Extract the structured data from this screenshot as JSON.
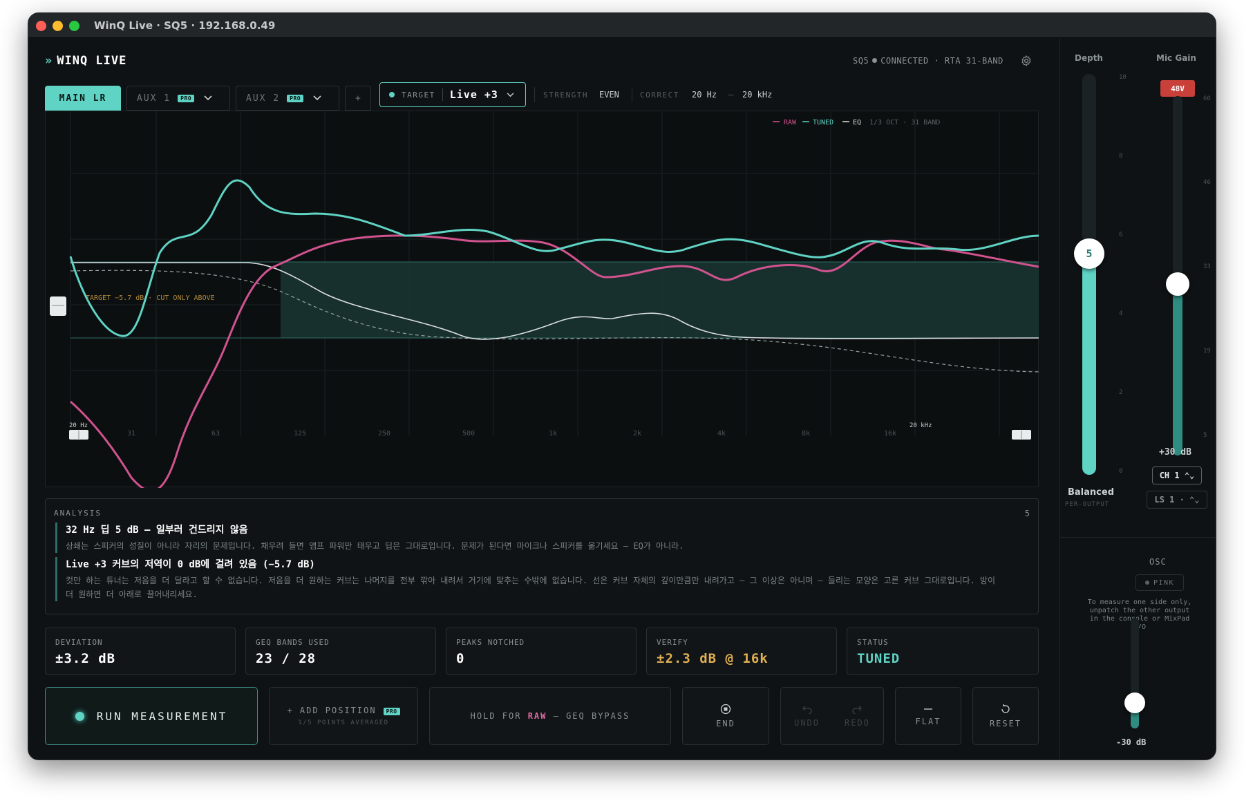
{
  "window": {
    "title": "WinQ Live · SQ5 · 192.168.0.49"
  },
  "brand": {
    "chevron": "»",
    "name": "WINQ LIVE"
  },
  "status": {
    "device": "SQ5",
    "connection": "CONNECTED",
    "rta": "RTA 31-BAND",
    "settings_icon": "gear-icon"
  },
  "tabs": [
    {
      "label": "MAIN LR",
      "active": true
    },
    {
      "label": "AUX 1",
      "badge": "PRO"
    },
    {
      "label": "AUX 2",
      "badge": "PRO"
    },
    {
      "label": "+"
    }
  ],
  "target": {
    "label": "TARGET",
    "value": "Live +3"
  },
  "options": {
    "strength_label": "STRENGTH",
    "strength_value": "EVEN",
    "correct_label": "CORRECT",
    "correct_from": "20 Hz",
    "correct_dash": "—",
    "correct_to": "20 kHz"
  },
  "chart": {
    "legend": {
      "raw": "RAW",
      "tuned": "TUNED",
      "eq": "EQ",
      "resolution": "1/3 OCT · 31 BAND"
    },
    "target_note": "TARGET −5.7 dB · CUT ONLY ABOVE",
    "low_bound_label": "20 Hz",
    "high_bound_label": "20 kHz",
    "x_ticks": [
      "31",
      "63",
      "125",
      "250",
      "500",
      "1k",
      "2k",
      "4k",
      "8k",
      "16k"
    ],
    "colors": {
      "raw": "#d0538f",
      "tuned": "#5fd3c4",
      "eq": "#d9dedf",
      "target_band": "#1d3a36"
    }
  },
  "analysis": {
    "title": "ANALYSIS",
    "count": "5",
    "items": [
      {
        "title": "32 Hz 딥 5 dB — 일부러 건드리지 않음",
        "body": "상쇄는 스피커의 성질이 아니라 자리의 문제입니다. 채우려 들면 앰프 파워만 태우고 딥은 그대로입니다. 문제가 된다면 마이크나 스피커를 옮기세요 — EQ가 아니라."
      },
      {
        "title": "Live +3 커브의 저역이 0 dB에 걸려 있음 (−5.7 dB)",
        "body": "컷만 하는 튜너는 저음을 더 달라고 할 수 없습니다. 저음을 더 원하는 커브는 나머지를 전부 깎아 내려서 거기에 맞추는 수밖에 없습니다. 선은 커브 자체의 깊이만큼만 내려가고 — 그 이상은 아니며 — 들리는 모양은 고른 커브 그대로입니다. 방이 더 원하면 더 아래로 끌어내리세요."
      }
    ]
  },
  "stats": [
    {
      "label": "DEVIATION",
      "value": "±3.2 dB",
      "tone": ""
    },
    {
      "label": "GEQ BANDS USED",
      "value": "23 / 28",
      "tone": ""
    },
    {
      "label": "PEAKS NOTCHED",
      "value": "0",
      "tone": ""
    },
    {
      "label": "VERIFY",
      "value": "±2.3 dB @ 16k",
      "tone": "amber"
    },
    {
      "label": "STATUS",
      "value": "TUNED",
      "tone": "teal"
    }
  ],
  "actions": {
    "run": "RUN MEASUREMENT",
    "add_position": "+ ADD POSITION",
    "add_position_badge": "PRO",
    "add_position_sub": "1/5 POINTS AVERAGED",
    "hold_prefix": "HOLD FOR",
    "hold_raw": "RAW",
    "hold_suffix": "— GEQ BYPASS",
    "end": "END",
    "undo": "UNDO",
    "redo": "REDO",
    "flat": "FLAT",
    "reset": "RESET"
  },
  "side": {
    "depth": {
      "label": "Depth",
      "value": "5",
      "level": 0.5,
      "scale": [
        "10",
        "8",
        "6",
        "4",
        "2",
        "0"
      ],
      "mode": "Balanced",
      "mode_sub": "PER-OUTPUT"
    },
    "mic_gain": {
      "label": "Mic Gain",
      "phantom": "48V",
      "value": "+30 dB",
      "scale": [
        "60",
        "46",
        "33",
        "19",
        "5"
      ],
      "channel": "CH 1 ⌃⌄",
      "output": "LS 1 · ⌃⌄"
    },
    "osc": {
      "title": "OSC",
      "signal": "PINK",
      "note": "To measure one side only, unpatch the other output in the console or MixPad I/O",
      "level": "-30 dB"
    }
  }
}
